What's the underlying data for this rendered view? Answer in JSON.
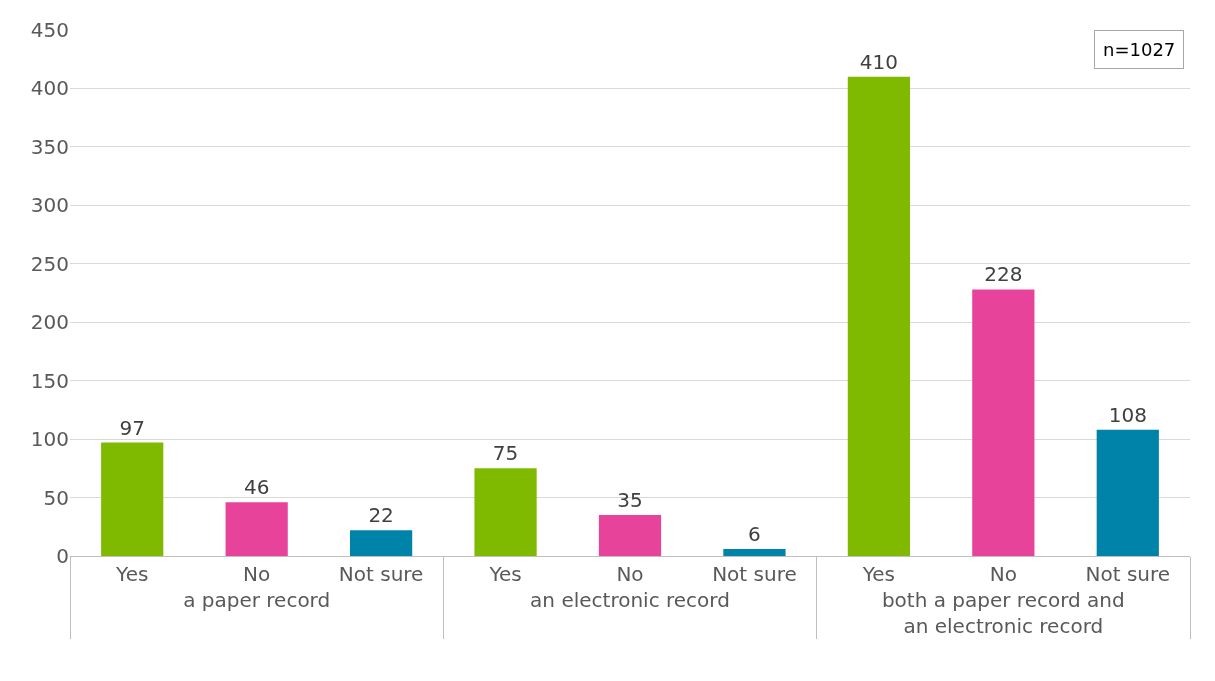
{
  "chart_data": {
    "type": "bar",
    "categories": [
      "Yes",
      "No",
      "Not sure",
      "Yes",
      "No",
      "Not sure",
      "Yes",
      "No",
      "Not sure"
    ],
    "values": [
      97,
      46,
      22,
      75,
      35,
      6,
      410,
      228,
      108
    ],
    "colors": [
      "#7fba00",
      "#e8439a",
      "#0083a9",
      "#7fba00",
      "#e8439a",
      "#0083a9",
      "#7fba00",
      "#e8439a",
      "#0083a9"
    ],
    "annotations": [
      "a paper record",
      "an electronic record",
      "both a paper record and an electronic record",
      "n=1027"
    ],
    "ylim": [
      0,
      450
    ],
    "yticks": [
      0,
      50,
      100,
      150,
      200,
      250,
      300,
      350,
      400,
      450
    ],
    "grid": "y",
    "data_labels": true
  }
}
